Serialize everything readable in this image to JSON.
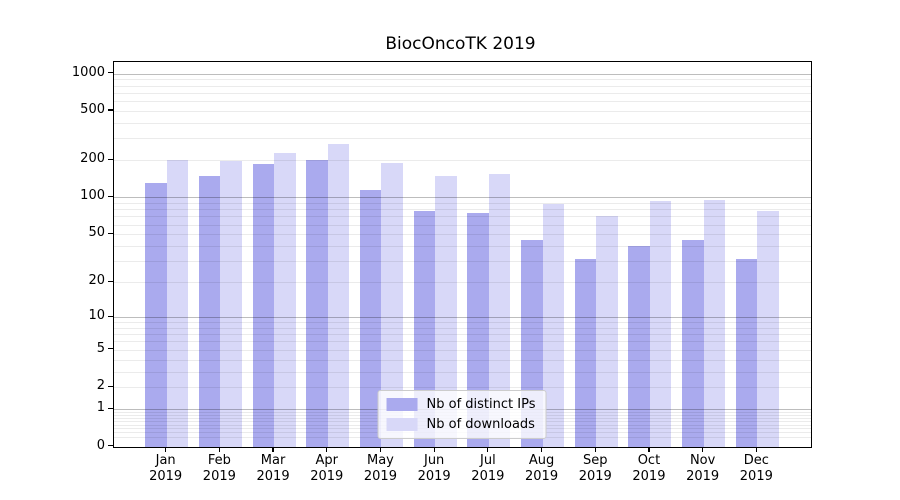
{
  "chart_data": {
    "type": "bar",
    "title": "BiocOncoTK 2019",
    "categories": [
      "Jan",
      "Feb",
      "Mar",
      "Apr",
      "May",
      "Jun",
      "Jul",
      "Aug",
      "Sep",
      "Oct",
      "Nov",
      "Dec"
    ],
    "category_year": "2019",
    "series": [
      {
        "name": "Nb of distinct IPs",
        "color": "#aaaaee",
        "values": [
          132,
          148,
          186,
          200,
          114,
          78,
          75,
          45,
          31,
          40,
          45,
          31
        ]
      },
      {
        "name": "Nb of downloads",
        "color": "#d8d8f8",
        "values": [
          200,
          198,
          227,
          270,
          189,
          150,
          154,
          89,
          70,
          94,
          96,
          77
        ]
      }
    ],
    "yscale": "log1p",
    "ylim": [
      0,
      1250
    ],
    "yticks": [
      0,
      1,
      2,
      5,
      10,
      20,
      50,
      100,
      200,
      500,
      1000
    ],
    "xlabel": "",
    "ylabel": "",
    "grid": {
      "major_values": [
        1,
        10,
        100,
        1000
      ],
      "minor_multipliers": [
        2,
        3,
        4,
        5,
        6,
        7,
        8,
        9
      ],
      "minor_decades": [
        0.1,
        1,
        10,
        100
      ],
      "major_color": "rgba(0,0,0,0.26)",
      "minor_color": "rgba(0,0,0,0.08)"
    },
    "legend": {
      "position": "lower center"
    },
    "colors": {
      "background": "#ffffff",
      "spine": "#000000",
      "text": "#000000",
      "legend_border": "#cccccc",
      "legend_background": "rgba(255,255,255,0.8)"
    }
  }
}
